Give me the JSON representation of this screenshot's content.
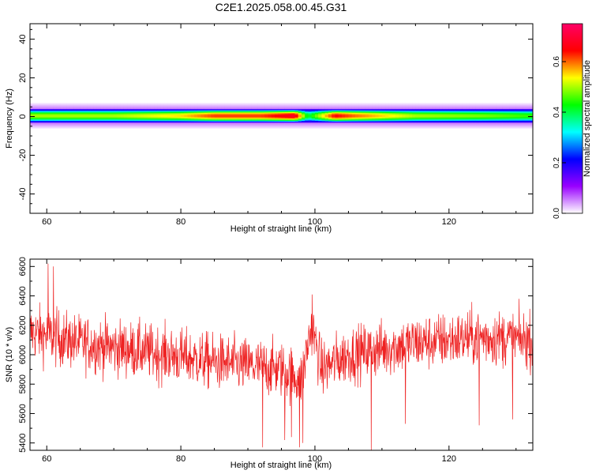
{
  "figure": {
    "title": "C2E1.2025.058.00.45.G31"
  },
  "chart_data": [
    {
      "type": "heatmap",
      "xlabel": "Height of straight line (km)",
      "ylabel": "Frequency (Hz)",
      "xlim": [
        57.5,
        132.5
      ],
      "ylim": [
        -50,
        48
      ],
      "xticks": [
        60,
        80,
        100,
        120
      ],
      "yticks": [
        -40,
        -20,
        0,
        20,
        40
      ],
      "colorbar": {
        "label": "Normalized spectral amplitude",
        "range": [
          0.0,
          0.75
        ],
        "ticks": [
          0.0,
          0.2,
          0.4,
          0.6
        ],
        "tick_labels": [
          "0.0",
          "0.2",
          "0.4",
          "0.6"
        ],
        "colors_bottom_to_top": [
          "#ffffff",
          "#9900ff",
          "#0000ff",
          "#00ffff",
          "#00ff00",
          "#ffff00",
          "#ff0000",
          "#ff0066"
        ]
      },
      "band": {
        "center_hz": 0.5,
        "half_width_hz": 3.5,
        "halo_half_width_hz": 7,
        "peak_amplitude_by_height": [
          {
            "x": 58,
            "amp": 0.5
          },
          {
            "x": 70,
            "amp": 0.5
          },
          {
            "x": 80,
            "amp": 0.55
          },
          {
            "x": 85,
            "amp": 0.62
          },
          {
            "x": 92,
            "amp": 0.62
          },
          {
            "x": 97,
            "amp": 0.68
          },
          {
            "x": 99,
            "amp": 0.4
          },
          {
            "x": 103,
            "amp": 0.65
          },
          {
            "x": 106,
            "amp": 0.6
          },
          {
            "x": 115,
            "amp": 0.5
          },
          {
            "x": 125,
            "amp": 0.48
          },
          {
            "x": 132,
            "amp": 0.45
          }
        ]
      }
    },
    {
      "type": "line",
      "xlabel": "Height of straight line (km)",
      "ylabel": "SNR (10 * v/v)",
      "xlim": [
        57.5,
        132.5
      ],
      "ylim": [
        5350,
        6650
      ],
      "xticks": [
        60,
        80,
        100,
        120
      ],
      "yticks": [
        5400,
        5600,
        5800,
        6000,
        6200,
        6400,
        6600
      ],
      "color": "#ee2222",
      "trend": [
        {
          "x": 58,
          "y": 6150
        },
        {
          "x": 65,
          "y": 6080
        },
        {
          "x": 75,
          "y": 6020
        },
        {
          "x": 85,
          "y": 5950
        },
        {
          "x": 95,
          "y": 5900
        },
        {
          "x": 98,
          "y": 5830
        },
        {
          "x": 99.5,
          "y": 6200
        },
        {
          "x": 101,
          "y": 5900
        },
        {
          "x": 105,
          "y": 6000
        },
        {
          "x": 115,
          "y": 6080
        },
        {
          "x": 125,
          "y": 6120
        },
        {
          "x": 132,
          "y": 6100
        }
      ],
      "noise_amplitude": 130,
      "spikes": [
        {
          "x": 60.2,
          "y": 6620
        },
        {
          "x": 61,
          "y": 6600
        },
        {
          "x": 92.2,
          "y": 5370
        },
        {
          "x": 95.5,
          "y": 5420
        },
        {
          "x": 96.5,
          "y": 5440
        },
        {
          "x": 97.7,
          "y": 5370
        },
        {
          "x": 98.2,
          "y": 5400
        },
        {
          "x": 99.6,
          "y": 6410
        },
        {
          "x": 108.4,
          "y": 5350
        },
        {
          "x": 113.5,
          "y": 5530
        },
        {
          "x": 124.5,
          "y": 5520
        },
        {
          "x": 129.5,
          "y": 5560
        }
      ]
    }
  ]
}
